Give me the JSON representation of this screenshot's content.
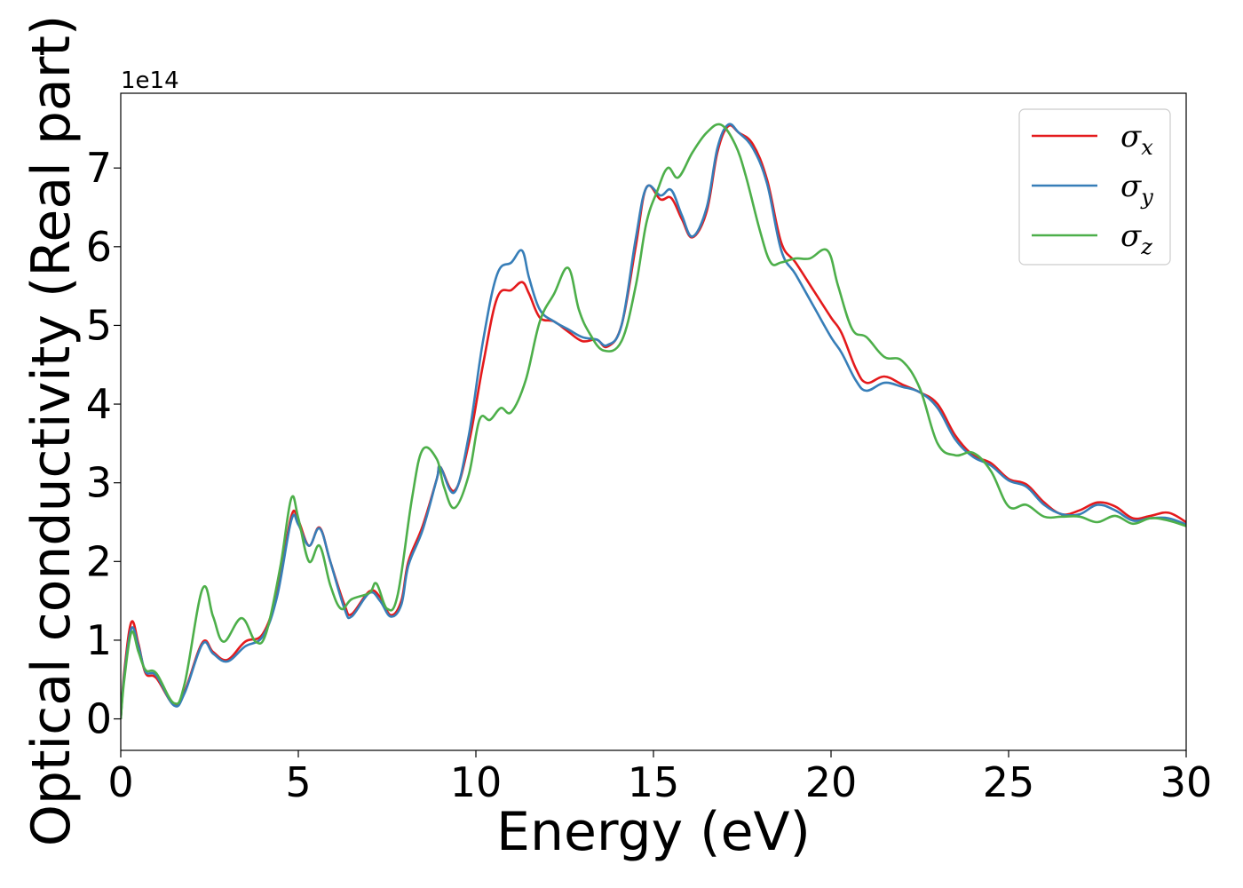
{
  "chart_data": {
    "type": "line",
    "title": "",
    "xlabel": "Energy (eV)",
    "ylabel": "Optical conductivity (Real part)",
    "y_offset_label": "1e14",
    "y_scale": 100000000000000.0,
    "xlim": [
      0,
      30
    ],
    "ylim": [
      -0.4,
      7.95
    ],
    "x_ticks": [
      0,
      5,
      10,
      15,
      20,
      25,
      30
    ],
    "x_tick_labels": [
      "0",
      "5",
      "10",
      "15",
      "20",
      "25",
      "30"
    ],
    "y_ticks": [
      0,
      1,
      2,
      3,
      4,
      5,
      6,
      7
    ],
    "y_tick_labels": [
      "0",
      "1",
      "2",
      "3",
      "4",
      "5",
      "6",
      "7"
    ],
    "grid": false,
    "legend_position": "top-right",
    "series": [
      {
        "name": "σx",
        "legend_base": "σ",
        "legend_sub": "x",
        "color": "#e41a1c",
        "points": [
          [
            0,
            0
          ],
          [
            0.1,
            0.6
          ],
          [
            0.3,
            1.23
          ],
          [
            0.5,
            0.95
          ],
          [
            0.7,
            0.58
          ],
          [
            1.0,
            0.52
          ],
          [
            1.5,
            0.18
          ],
          [
            1.8,
            0.35
          ],
          [
            2.3,
            0.97
          ],
          [
            2.6,
            0.85
          ],
          [
            3.0,
            0.75
          ],
          [
            3.5,
            0.98
          ],
          [
            4.0,
            1.08
          ],
          [
            4.4,
            1.6
          ],
          [
            4.8,
            2.57
          ],
          [
            5.0,
            2.52
          ],
          [
            5.3,
            2.2
          ],
          [
            5.6,
            2.43
          ],
          [
            5.9,
            2.0
          ],
          [
            6.3,
            1.45
          ],
          [
            6.5,
            1.33
          ],
          [
            7.0,
            1.62
          ],
          [
            7.3,
            1.55
          ],
          [
            7.6,
            1.32
          ],
          [
            7.9,
            1.5
          ],
          [
            8.1,
            2.0
          ],
          [
            8.5,
            2.45
          ],
          [
            8.9,
            3.05
          ],
          [
            9.0,
            3.2
          ],
          [
            9.4,
            2.9
          ],
          [
            9.8,
            3.5
          ],
          [
            10.2,
            4.5
          ],
          [
            10.6,
            5.35
          ],
          [
            11.0,
            5.45
          ],
          [
            11.3,
            5.55
          ],
          [
            11.5,
            5.4
          ],
          [
            11.8,
            5.1
          ],
          [
            12.2,
            5.05
          ],
          [
            12.6,
            4.92
          ],
          [
            13.0,
            4.8
          ],
          [
            13.4,
            4.82
          ],
          [
            13.7,
            4.73
          ],
          [
            14.1,
            5.0
          ],
          [
            14.5,
            6.0
          ],
          [
            14.8,
            6.75
          ],
          [
            15.2,
            6.6
          ],
          [
            15.5,
            6.62
          ],
          [
            15.8,
            6.35
          ],
          [
            16.1,
            6.12
          ],
          [
            16.5,
            6.45
          ],
          [
            16.8,
            7.2
          ],
          [
            17.1,
            7.53
          ],
          [
            17.4,
            7.45
          ],
          [
            17.8,
            7.3
          ],
          [
            18.2,
            6.85
          ],
          [
            18.6,
            6.05
          ],
          [
            19.0,
            5.8
          ],
          [
            19.5,
            5.45
          ],
          [
            20.0,
            5.1
          ],
          [
            20.3,
            4.9
          ],
          [
            20.7,
            4.45
          ],
          [
            21.0,
            4.27
          ],
          [
            21.5,
            4.35
          ],
          [
            22.0,
            4.25
          ],
          [
            22.5,
            4.15
          ],
          [
            23.0,
            4.0
          ],
          [
            23.5,
            3.6
          ],
          [
            24.0,
            3.35
          ],
          [
            24.5,
            3.25
          ],
          [
            25.0,
            3.05
          ],
          [
            25.5,
            2.98
          ],
          [
            26.0,
            2.75
          ],
          [
            26.5,
            2.6
          ],
          [
            27.0,
            2.65
          ],
          [
            27.5,
            2.75
          ],
          [
            28.0,
            2.7
          ],
          [
            28.5,
            2.55
          ],
          [
            29.0,
            2.58
          ],
          [
            29.5,
            2.62
          ],
          [
            30.0,
            2.5
          ]
        ]
      },
      {
        "name": "σy",
        "legend_base": "σ",
        "legend_sub": "y",
        "color": "#377eb8",
        "points": [
          [
            0,
            0
          ],
          [
            0.1,
            0.55
          ],
          [
            0.3,
            1.15
          ],
          [
            0.5,
            0.92
          ],
          [
            0.7,
            0.6
          ],
          [
            1.0,
            0.55
          ],
          [
            1.5,
            0.17
          ],
          [
            1.8,
            0.33
          ],
          [
            2.3,
            0.95
          ],
          [
            2.6,
            0.83
          ],
          [
            3.0,
            0.73
          ],
          [
            3.5,
            0.92
          ],
          [
            4.0,
            1.05
          ],
          [
            4.4,
            1.55
          ],
          [
            4.8,
            2.52
          ],
          [
            5.0,
            2.47
          ],
          [
            5.3,
            2.2
          ],
          [
            5.6,
            2.42
          ],
          [
            5.9,
            2.0
          ],
          [
            6.3,
            1.4
          ],
          [
            6.5,
            1.3
          ],
          [
            7.0,
            1.6
          ],
          [
            7.3,
            1.5
          ],
          [
            7.6,
            1.3
          ],
          [
            7.9,
            1.45
          ],
          [
            8.1,
            1.95
          ],
          [
            8.5,
            2.4
          ],
          [
            8.9,
            3.05
          ],
          [
            9.0,
            3.2
          ],
          [
            9.4,
            2.88
          ],
          [
            9.8,
            3.6
          ],
          [
            10.2,
            4.8
          ],
          [
            10.6,
            5.65
          ],
          [
            11.0,
            5.8
          ],
          [
            11.3,
            5.95
          ],
          [
            11.5,
            5.6
          ],
          [
            11.8,
            5.2
          ],
          [
            12.2,
            5.05
          ],
          [
            12.6,
            4.95
          ],
          [
            13.0,
            4.85
          ],
          [
            13.4,
            4.82
          ],
          [
            13.7,
            4.75
          ],
          [
            14.1,
            5.0
          ],
          [
            14.5,
            6.1
          ],
          [
            14.8,
            6.75
          ],
          [
            15.2,
            6.65
          ],
          [
            15.5,
            6.72
          ],
          [
            15.8,
            6.4
          ],
          [
            16.1,
            6.13
          ],
          [
            16.5,
            6.5
          ],
          [
            16.8,
            7.25
          ],
          [
            17.1,
            7.55
          ],
          [
            17.4,
            7.45
          ],
          [
            17.8,
            7.25
          ],
          [
            18.2,
            6.8
          ],
          [
            18.6,
            5.95
          ],
          [
            19.0,
            5.65
          ],
          [
            19.5,
            5.25
          ],
          [
            20.0,
            4.85
          ],
          [
            20.3,
            4.65
          ],
          [
            20.7,
            4.3
          ],
          [
            21.0,
            4.17
          ],
          [
            21.5,
            4.27
          ],
          [
            22.0,
            4.22
          ],
          [
            22.5,
            4.15
          ],
          [
            23.0,
            3.95
          ],
          [
            23.5,
            3.55
          ],
          [
            24.0,
            3.33
          ],
          [
            24.5,
            3.22
          ],
          [
            25.0,
            3.03
          ],
          [
            25.5,
            2.95
          ],
          [
            26.0,
            2.72
          ],
          [
            26.5,
            2.6
          ],
          [
            27.0,
            2.6
          ],
          [
            27.5,
            2.72
          ],
          [
            28.0,
            2.65
          ],
          [
            28.5,
            2.52
          ],
          [
            29.0,
            2.55
          ],
          [
            29.5,
            2.55
          ],
          [
            30.0,
            2.47
          ]
        ]
      },
      {
        "name": "σz",
        "legend_base": "σ",
        "legend_sub": "z",
        "color": "#4daf4a",
        "points": [
          [
            0,
            0
          ],
          [
            0.1,
            0.5
          ],
          [
            0.3,
            1.1
          ],
          [
            0.5,
            0.85
          ],
          [
            0.7,
            0.62
          ],
          [
            1.0,
            0.58
          ],
          [
            1.5,
            0.2
          ],
          [
            1.8,
            0.45
          ],
          [
            2.3,
            1.65
          ],
          [
            2.6,
            1.3
          ],
          [
            2.9,
            0.98
          ],
          [
            3.4,
            1.28
          ],
          [
            3.8,
            0.98
          ],
          [
            4.1,
            1.1
          ],
          [
            4.5,
            1.95
          ],
          [
            4.8,
            2.8
          ],
          [
            5.0,
            2.55
          ],
          [
            5.3,
            2.0
          ],
          [
            5.6,
            2.2
          ],
          [
            5.9,
            1.7
          ],
          [
            6.2,
            1.4
          ],
          [
            6.5,
            1.52
          ],
          [
            7.0,
            1.6
          ],
          [
            7.2,
            1.72
          ],
          [
            7.5,
            1.4
          ],
          [
            7.8,
            1.58
          ],
          [
            8.2,
            2.8
          ],
          [
            8.5,
            3.42
          ],
          [
            8.9,
            3.3
          ],
          [
            9.1,
            2.95
          ],
          [
            9.4,
            2.68
          ],
          [
            9.8,
            3.1
          ],
          [
            10.1,
            3.8
          ],
          [
            10.4,
            3.8
          ],
          [
            10.7,
            3.95
          ],
          [
            11.0,
            3.9
          ],
          [
            11.4,
            4.3
          ],
          [
            11.8,
            5.05
          ],
          [
            12.2,
            5.4
          ],
          [
            12.6,
            5.73
          ],
          [
            12.9,
            5.2
          ],
          [
            13.2,
            4.9
          ],
          [
            13.6,
            4.68
          ],
          [
            14.1,
            4.8
          ],
          [
            14.5,
            5.5
          ],
          [
            14.8,
            6.3
          ],
          [
            15.1,
            6.7
          ],
          [
            15.4,
            7.0
          ],
          [
            15.7,
            6.88
          ],
          [
            16.1,
            7.2
          ],
          [
            16.5,
            7.45
          ],
          [
            16.9,
            7.55
          ],
          [
            17.3,
            7.3
          ],
          [
            17.6,
            6.9
          ],
          [
            18.0,
            6.2
          ],
          [
            18.3,
            5.8
          ],
          [
            18.6,
            5.8
          ],
          [
            19.0,
            5.85
          ],
          [
            19.4,
            5.85
          ],
          [
            19.9,
            5.95
          ],
          [
            20.2,
            5.5
          ],
          [
            20.6,
            4.95
          ],
          [
            21.0,
            4.85
          ],
          [
            21.5,
            4.6
          ],
          [
            22.0,
            4.55
          ],
          [
            22.5,
            4.2
          ],
          [
            23.0,
            3.5
          ],
          [
            23.5,
            3.35
          ],
          [
            24.0,
            3.38
          ],
          [
            24.5,
            3.15
          ],
          [
            25.0,
            2.7
          ],
          [
            25.5,
            2.72
          ],
          [
            26.0,
            2.57
          ],
          [
            26.5,
            2.57
          ],
          [
            27.0,
            2.57
          ],
          [
            27.5,
            2.5
          ],
          [
            28.0,
            2.58
          ],
          [
            28.5,
            2.48
          ],
          [
            29.0,
            2.55
          ],
          [
            29.5,
            2.52
          ],
          [
            30.0,
            2.45
          ]
        ]
      }
    ]
  }
}
